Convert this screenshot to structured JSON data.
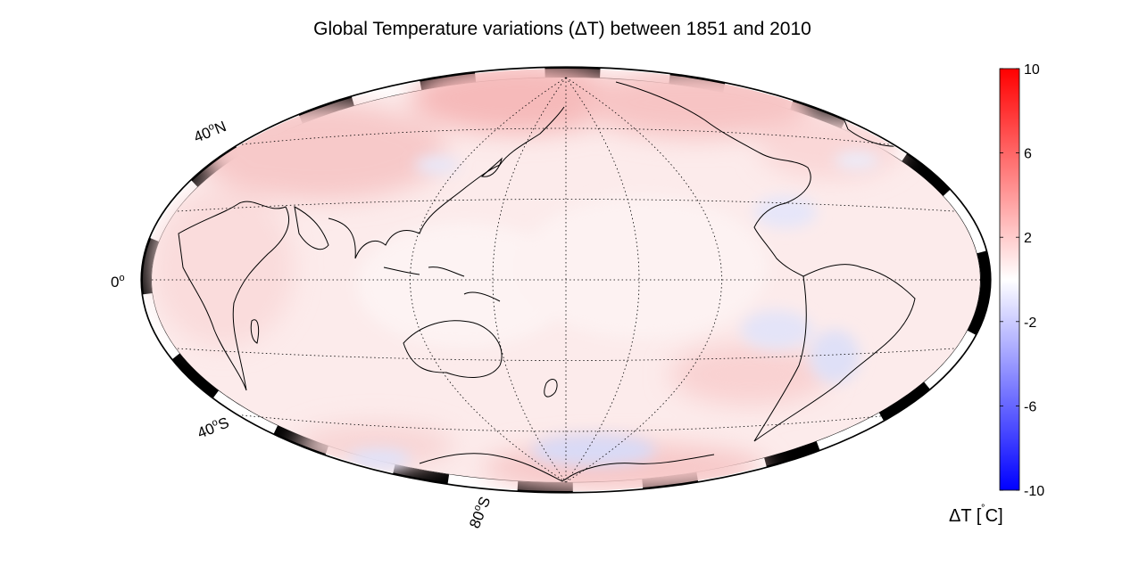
{
  "title": "Global Temperature variations (ΔT) between 1851 and 2010",
  "map": {
    "projection": "Hammer-Aitoff",
    "center_longitude": 180,
    "graticule_step_degrees": {
      "lat": 20,
      "lon": 60
    },
    "lat_labels": [
      {
        "deg": "40",
        "hemi": "N"
      },
      {
        "deg": "0",
        "hemi": ""
      },
      {
        "deg": "40",
        "hemi": "S"
      },
      {
        "deg": "80",
        "hemi": "S"
      }
    ]
  },
  "colorbar": {
    "ticks": [
      "10",
      "6",
      "2",
      "-2",
      "-6",
      "-10"
    ],
    "label_main": "ΔT [",
    "label_deg": "˚",
    "label_unit": "C]",
    "colors": {
      "max": "#ff0000",
      "mid": "#ffffff",
      "min": "#0000ff"
    }
  }
}
